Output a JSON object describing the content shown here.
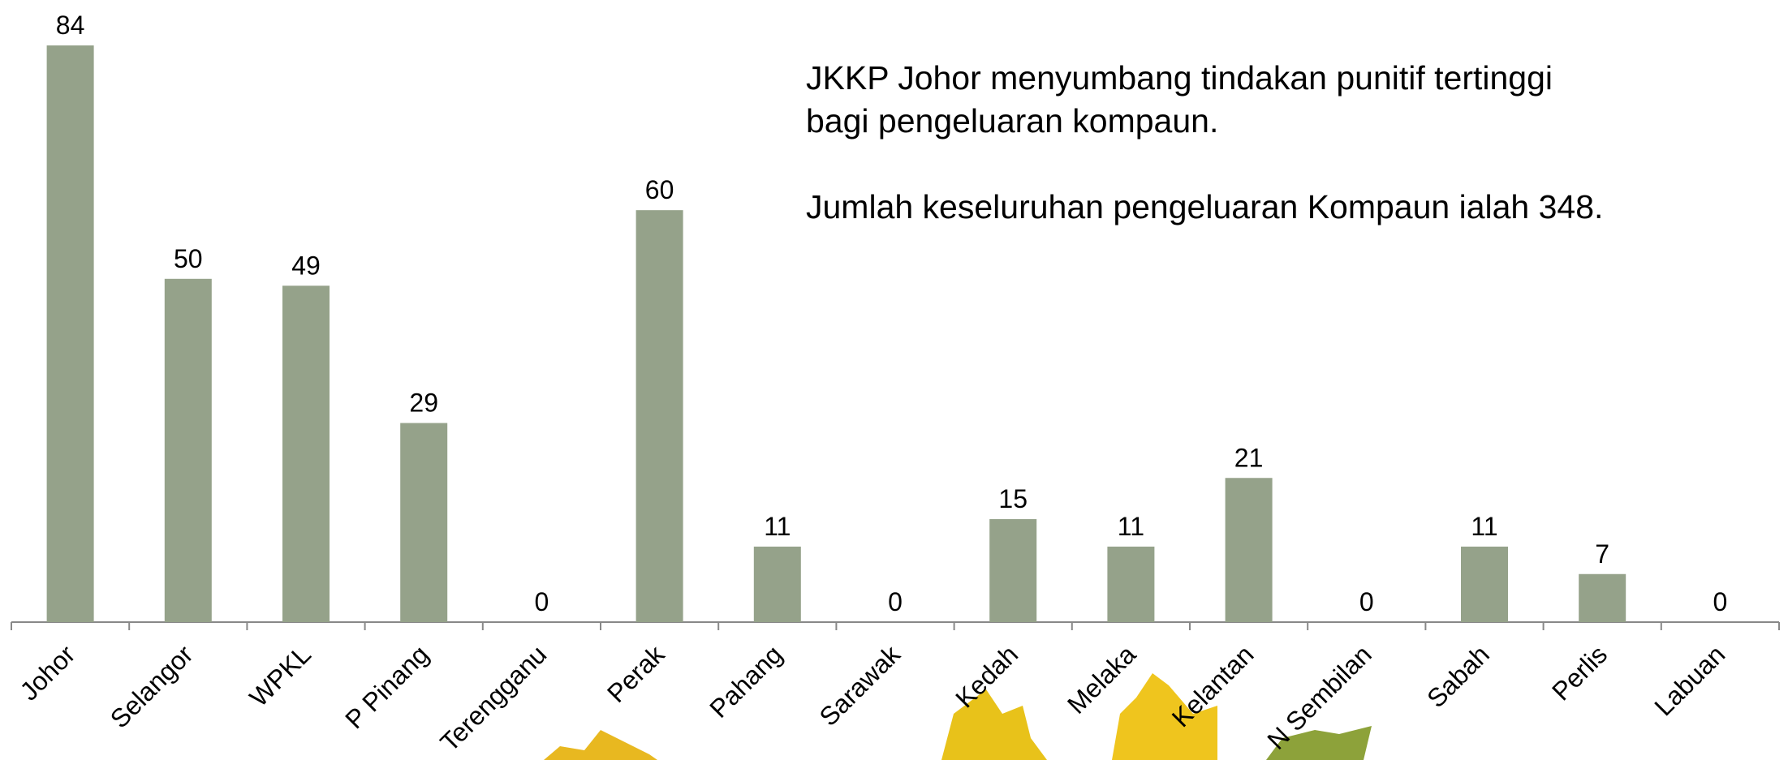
{
  "chart_data": {
    "type": "bar",
    "categories": [
      "Johor",
      "Selangor",
      "WPKL",
      "P Pinang",
      "Terengganu",
      "Perak",
      "Pahang",
      "Sarawak",
      "Kedah",
      "Melaka",
      "Kelantan",
      "N Sembilan",
      "Sabah",
      "Perlis",
      "Labuan"
    ],
    "values": [
      84,
      50,
      49,
      29,
      0,
      60,
      11,
      0,
      15,
      11,
      21,
      0,
      11,
      7,
      0
    ],
    "color": "#95a28a",
    "annotations": [
      "JKKP Johor menyumbang tindakan punitif tertinggi bagi pengeluaran kompaun.",
      "Jumlah keseluruhan pengeluaran Kompaun ialah 348."
    ]
  }
}
